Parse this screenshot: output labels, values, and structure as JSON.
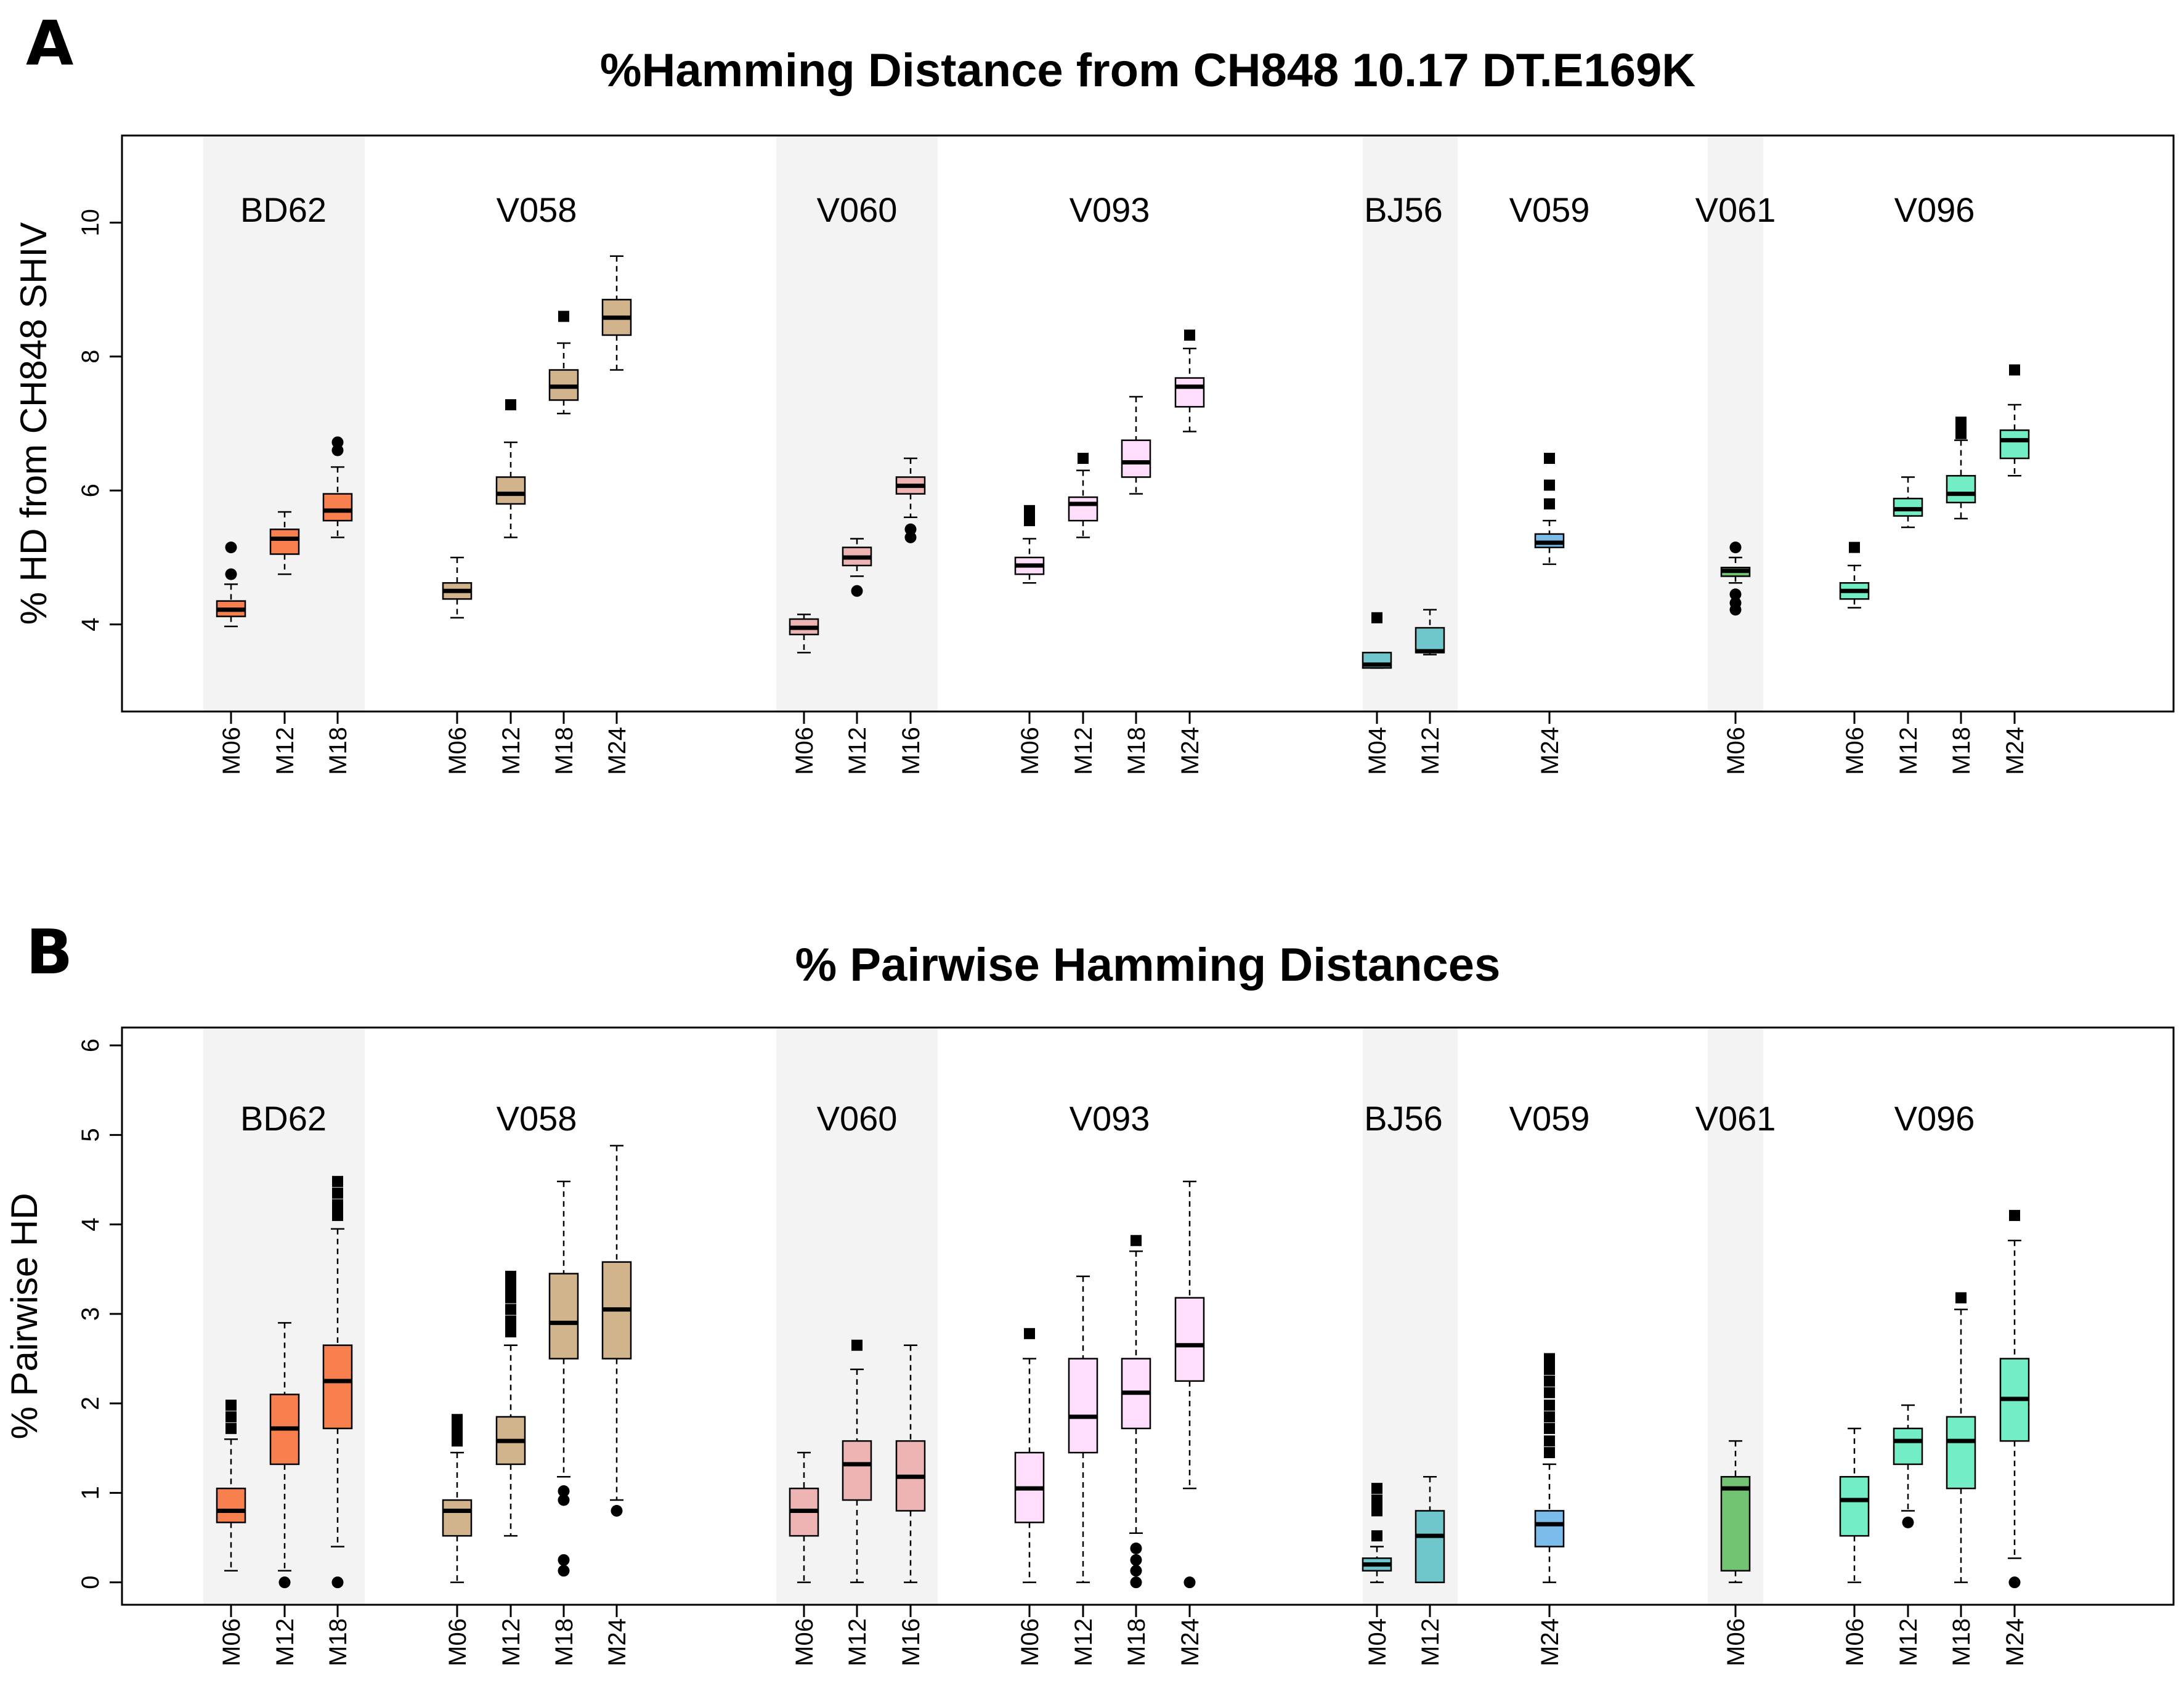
{
  "figure_labels": [
    "A",
    "B"
  ],
  "colors": {
    "BD62": "#F8804E",
    "V058": "#D2B48C",
    "V060": "#EEB4B4",
    "V093": "#FFDDFB",
    "BJ56": "#6FC7CC",
    "V059": "#7BBCEB",
    "V061": "#72C472",
    "V096": "#72EDC6",
    "group_shade": "#F3F3F3"
  },
  "chart_data": [
    {
      "type": "box",
      "panel": "A",
      "title": "%Hamming Distance from CH848 10.17 DT.E169K",
      "ylabel": "% HD from CH848 SHIV",
      "xlabel": "",
      "ylim": [
        2.7,
        11.3
      ],
      "yticks": [
        4,
        6,
        8,
        10
      ],
      "groups": [
        {
          "name": "BD62",
          "shaded": true,
          "boxes": [
            {
              "label": "M06",
              "whislo": 3.97,
              "q1": 4.12,
              "med": 4.22,
              "q3": 4.35,
              "whishi": 4.6,
              "outliers": [
                4.75,
                5.15
              ]
            },
            {
              "label": "M12",
              "whislo": 4.75,
              "q1": 5.05,
              "med": 5.28,
              "q3": 5.42,
              "whishi": 5.68,
              "outliers": []
            },
            {
              "label": "M18",
              "whislo": 5.3,
              "q1": 5.55,
              "med": 5.7,
              "q3": 5.95,
              "whishi": 6.35,
              "outliers": [
                6.6,
                6.72
              ]
            }
          ]
        },
        {
          "name": "V058",
          "shaded": false,
          "boxes": [
            {
              "label": "M06",
              "whislo": 4.1,
              "q1": 4.38,
              "med": 4.5,
              "q3": 4.62,
              "whishi": 5.0,
              "outliers": []
            },
            {
              "label": "M12",
              "whislo": 5.3,
              "q1": 5.8,
              "med": 5.95,
              "q3": 6.2,
              "whishi": 6.72,
              "outliers": [
                7.28
              ]
            },
            {
              "label": "M18",
              "whislo": 7.15,
              "q1": 7.35,
              "med": 7.55,
              "q3": 7.8,
              "whishi": 8.2,
              "outliers": [
                8.6
              ]
            },
            {
              "label": "M24",
              "whislo": 7.8,
              "q1": 8.32,
              "med": 8.58,
              "q3": 8.85,
              "whishi": 9.5,
              "outliers": []
            }
          ]
        },
        {
          "name": "V060",
          "shaded": true,
          "boxes": [
            {
              "label": "M06",
              "whislo": 3.58,
              "q1": 3.85,
              "med": 3.95,
              "q3": 4.08,
              "whishi": 4.15,
              "outliers": []
            },
            {
              "label": "M12",
              "whislo": 4.72,
              "q1": 4.88,
              "med": 5.0,
              "q3": 5.15,
              "whishi": 5.28,
              "outliers": [
                4.5
              ]
            },
            {
              "label": "M16",
              "whislo": 5.6,
              "q1": 5.95,
              "med": 6.07,
              "q3": 6.2,
              "whishi": 6.48,
              "outliers": [
                5.3,
                5.42
              ]
            }
          ]
        },
        {
          "name": "V093",
          "shaded": false,
          "boxes": [
            {
              "label": "M06",
              "whislo": 4.62,
              "q1": 4.75,
              "med": 4.88,
              "q3": 5.0,
              "whishi": 5.28,
              "outliers": [
                5.55,
                5.7
              ]
            },
            {
              "label": "M12",
              "whislo": 5.3,
              "q1": 5.55,
              "med": 5.8,
              "q3": 5.9,
              "whishi": 6.3,
              "outliers": [
                6.48
              ]
            },
            {
              "label": "M18",
              "whislo": 5.95,
              "q1": 6.2,
              "med": 6.42,
              "q3": 6.75,
              "whishi": 7.4,
              "outliers": []
            },
            {
              "label": "M24",
              "whislo": 6.88,
              "q1": 7.25,
              "med": 7.55,
              "q3": 7.68,
              "whishi": 8.12,
              "outliers": [
                8.32
              ]
            }
          ]
        },
        {
          "name": "BJ56",
          "shaded": true,
          "boxes": [
            {
              "label": "M04",
              "whislo": 3.35,
              "q1": 3.35,
              "med": 3.4,
              "q3": 3.58,
              "whishi": 3.58,
              "outliers": [
                4.1
              ]
            },
            {
              "label": "M12",
              "whislo": 3.55,
              "q1": 3.58,
              "med": 3.6,
              "q3": 3.95,
              "whishi": 4.22,
              "outliers": []
            }
          ]
        },
        {
          "name": "V059",
          "shaded": false,
          "boxes": [
            {
              "label": "M24",
              "whislo": 4.9,
              "q1": 5.15,
              "med": 5.22,
              "q3": 5.35,
              "whishi": 5.55,
              "outliers": [
                5.8,
                6.08,
                6.48
              ]
            }
          ]
        },
        {
          "name": "V061",
          "shaded": true,
          "boxes": [
            {
              "label": "M06",
              "whislo": 4.62,
              "q1": 4.72,
              "med": 4.8,
              "q3": 4.85,
              "whishi": 5.0,
              "outliers": [
                4.22,
                4.32,
                4.45,
                5.15
              ]
            }
          ]
        },
        {
          "name": "V096",
          "shaded": false,
          "boxes": [
            {
              "label": "M06",
              "whislo": 4.25,
              "q1": 4.38,
              "med": 4.5,
              "q3": 4.62,
              "whishi": 4.88,
              "outliers": [
                5.15
              ]
            },
            {
              "label": "M12",
              "whislo": 5.45,
              "q1": 5.62,
              "med": 5.72,
              "q3": 5.88,
              "whishi": 6.2,
              "outliers": []
            },
            {
              "label": "M18",
              "whislo": 5.58,
              "q1": 5.82,
              "med": 5.95,
              "q3": 6.22,
              "whishi": 6.75,
              "outliers": [
                6.85,
                6.95,
                7.02
              ]
            },
            {
              "label": "M24",
              "whislo": 6.22,
              "q1": 6.48,
              "med": 6.75,
              "q3": 6.9,
              "whishi": 7.28,
              "outliers": [
                7.8
              ]
            }
          ]
        }
      ]
    },
    {
      "type": "box",
      "panel": "B",
      "title": "% Pairwise Hamming Distances",
      "ylabel": "% Pairwise HD",
      "xlabel": "",
      "ylim": [
        -0.25,
        6.2
      ],
      "yticks": [
        0,
        1,
        2,
        3,
        4,
        5,
        6
      ],
      "groups": [
        {
          "name": "BD62",
          "shaded": true,
          "boxes": [
            {
              "label": "M06",
              "whislo": 0.13,
              "q1": 0.67,
              "med": 0.8,
              "q3": 1.05,
              "whishi": 1.6,
              "outliers": [
                1.72,
                1.85,
                1.98
              ]
            },
            {
              "label": "M12",
              "whislo": 0.13,
              "q1": 1.32,
              "med": 1.72,
              "q3": 2.1,
              "whishi": 2.9,
              "outliers": [
                0.0
              ]
            },
            {
              "label": "M18",
              "whislo": 0.4,
              "q1": 1.72,
              "med": 2.25,
              "q3": 2.65,
              "whishi": 3.95,
              "outliers": [
                0.0,
                4.1,
                4.22,
                4.35,
                4.48
              ]
            }
          ]
        },
        {
          "name": "V058",
          "shaded": false,
          "boxes": [
            {
              "label": "M06",
              "whislo": 0.0,
              "q1": 0.52,
              "med": 0.8,
              "q3": 0.92,
              "whishi": 1.45,
              "outliers": [
                1.58,
                1.7,
                1.82
              ]
            },
            {
              "label": "M12",
              "whislo": 0.52,
              "q1": 1.32,
              "med": 1.58,
              "q3": 1.85,
              "whishi": 2.65,
              "outliers": [
                2.8,
                2.92,
                3.05,
                3.18,
                3.3,
                3.42
              ]
            },
            {
              "label": "M18",
              "whislo": 1.18,
              "q1": 2.5,
              "med": 2.9,
              "q3": 3.45,
              "whishi": 4.48,
              "outliers": [
                0.13,
                0.25,
                0.92,
                1.02
              ]
            },
            {
              "label": "M24",
              "whislo": 0.92,
              "q1": 2.5,
              "med": 3.05,
              "q3": 3.58,
              "whishi": 4.88,
              "outliers": [
                0.8
              ]
            }
          ]
        },
        {
          "name": "V060",
          "shaded": true,
          "boxes": [
            {
              "label": "M06",
              "whislo": 0.0,
              "q1": 0.52,
              "med": 0.8,
              "q3": 1.05,
              "whishi": 1.45,
              "outliers": []
            },
            {
              "label": "M12",
              "whislo": 0.0,
              "q1": 0.92,
              "med": 1.32,
              "q3": 1.58,
              "whishi": 2.38,
              "outliers": [
                2.65
              ]
            },
            {
              "label": "M16",
              "whislo": 0.0,
              "q1": 0.8,
              "med": 1.18,
              "q3": 1.58,
              "whishi": 2.65,
              "outliers": []
            }
          ]
        },
        {
          "name": "V093",
          "shaded": false,
          "boxes": [
            {
              "label": "M06",
              "whislo": 0.0,
              "q1": 0.67,
              "med": 1.05,
              "q3": 1.45,
              "whishi": 2.5,
              "outliers": [
                2.78
              ]
            },
            {
              "label": "M12",
              "whislo": 0.0,
              "q1": 1.45,
              "med": 1.85,
              "q3": 2.5,
              "whishi": 3.42,
              "outliers": []
            },
            {
              "label": "M18",
              "whislo": 0.55,
              "q1": 1.72,
              "med": 2.12,
              "q3": 2.5,
              "whishi": 3.7,
              "outliers": [
                0.0,
                0.13,
                0.25,
                0.38,
                3.82
              ]
            },
            {
              "label": "M24",
              "whislo": 1.05,
              "q1": 2.25,
              "med": 2.65,
              "q3": 3.18,
              "whishi": 4.48,
              "outliers": [
                0.0
              ]
            }
          ]
        },
        {
          "name": "BJ56",
          "shaded": true,
          "boxes": [
            {
              "label": "M04",
              "whislo": 0.0,
              "q1": 0.13,
              "med": 0.2,
              "q3": 0.27,
              "whishi": 0.4,
              "outliers": [
                0.52,
                0.8,
                0.92,
                1.05
              ]
            },
            {
              "label": "M12",
              "whislo": 0.0,
              "q1": 0.0,
              "med": 0.52,
              "q3": 0.8,
              "whishi": 1.18,
              "outliers": []
            }
          ]
        },
        {
          "name": "V059",
          "shaded": false,
          "boxes": [
            {
              "label": "M24",
              "whislo": 0.0,
              "q1": 0.4,
              "med": 0.65,
              "q3": 0.8,
              "whishi": 1.32,
              "outliers": [
                1.45,
                1.58,
                1.72,
                1.85,
                1.98,
                2.12,
                2.25,
                2.38,
                2.5
              ]
            }
          ]
        },
        {
          "name": "V061",
          "shaded": true,
          "boxes": [
            {
              "label": "M06",
              "whislo": 0.0,
              "q1": 0.13,
              "med": 1.05,
              "q3": 1.18,
              "whishi": 1.58,
              "outliers": []
            }
          ]
        },
        {
          "name": "V096",
          "shaded": false,
          "boxes": [
            {
              "label": "M06",
              "whislo": 0.0,
              "q1": 0.52,
              "med": 0.92,
              "q3": 1.18,
              "whishi": 1.72,
              "outliers": []
            },
            {
              "label": "M12",
              "whislo": 0.8,
              "q1": 1.32,
              "med": 1.58,
              "q3": 1.72,
              "whishi": 1.98,
              "outliers": [
                0.67
              ]
            },
            {
              "label": "M18",
              "whislo": 0.0,
              "q1": 1.05,
              "med": 1.58,
              "q3": 1.85,
              "whishi": 3.05,
              "outliers": [
                3.18
              ]
            },
            {
              "label": "M24",
              "whislo": 0.27,
              "q1": 1.58,
              "med": 2.05,
              "q3": 2.5,
              "whishi": 3.82,
              "outliers": [
                0.0,
                4.1
              ]
            }
          ]
        }
      ]
    }
  ]
}
